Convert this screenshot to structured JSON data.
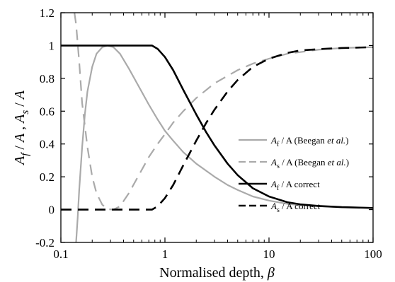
{
  "chart_data": {
    "type": "line",
    "title": "",
    "xlabel": "Normalised depth, β",
    "ylabel": "Af / A , As / A",
    "x_scale": "log",
    "xlim": [
      0.1,
      100
    ],
    "ylim": [
      -0.2,
      1.2
    ],
    "x_ticks": [
      {
        "value": 0.1,
        "label": "0.1"
      },
      {
        "value": 1,
        "label": "1"
      },
      {
        "value": 10,
        "label": "10"
      },
      {
        "value": 100,
        "label": "100"
      }
    ],
    "y_ticks": [
      {
        "value": -0.2,
        "label": "-0.2"
      },
      {
        "value": 0,
        "label": "0"
      },
      {
        "value": 0.2,
        "label": "0.2"
      },
      {
        "value": 0.4,
        "label": "0.4"
      },
      {
        "value": 0.6,
        "label": "0.6"
      },
      {
        "value": 0.8,
        "label": "0.8"
      },
      {
        "value": 1,
        "label": "1"
      },
      {
        "value": 1.2,
        "label": "1.2"
      }
    ],
    "grid": false,
    "legend_position": "right",
    "series": [
      {
        "name": "Af / A (Beegan et al.)",
        "legend": {
          "sym": "A",
          "sub": "f",
          "rest": " / A (Beegan ",
          "italic": "et al.",
          "end": ")"
        },
        "color": "#aaaaaa",
        "style": "solid",
        "points": [
          [
            0.14,
            -0.2
          ],
          [
            0.145,
            -0.05
          ],
          [
            0.15,
            0.12
          ],
          [
            0.16,
            0.38
          ],
          [
            0.17,
            0.58
          ],
          [
            0.18,
            0.72
          ],
          [
            0.2,
            0.87
          ],
          [
            0.22,
            0.95
          ],
          [
            0.25,
            0.99
          ],
          [
            0.28,
            1.0
          ],
          [
            0.32,
            0.99
          ],
          [
            0.37,
            0.95
          ],
          [
            0.45,
            0.86
          ],
          [
            0.55,
            0.76
          ],
          [
            0.7,
            0.64
          ],
          [
            0.85,
            0.55
          ],
          [
            1.0,
            0.48
          ],
          [
            1.2,
            0.42
          ],
          [
            1.5,
            0.35
          ],
          [
            2.0,
            0.28
          ],
          [
            3.0,
            0.2
          ],
          [
            4.0,
            0.15
          ],
          [
            5.0,
            0.12
          ],
          [
            7.0,
            0.08
          ],
          [
            10.0,
            0.055
          ],
          [
            15.0,
            0.035
          ],
          [
            20.0,
            0.027
          ],
          [
            30.0,
            0.02
          ],
          [
            50.0,
            0.015
          ],
          [
            100.0,
            0.01
          ]
        ]
      },
      {
        "name": "As / A (Beegan et al.)",
        "legend": {
          "sym": "A",
          "sub": "s",
          "rest": " / A (Beegan ",
          "italic": "et al.",
          "end": ")"
        },
        "color": "#aaaaaa",
        "style": "dashed",
        "points": [
          [
            0.135,
            1.2
          ],
          [
            0.14,
            1.13
          ],
          [
            0.15,
            0.9
          ],
          [
            0.16,
            0.65
          ],
          [
            0.18,
            0.38
          ],
          [
            0.2,
            0.2
          ],
          [
            0.22,
            0.1
          ],
          [
            0.25,
            0.03
          ],
          [
            0.28,
            0.003
          ],
          [
            0.32,
            0.0
          ],
          [
            0.37,
            0.02
          ],
          [
            0.45,
            0.1
          ],
          [
            0.55,
            0.2
          ],
          [
            0.7,
            0.32
          ],
          [
            0.85,
            0.4
          ],
          [
            1.0,
            0.46
          ],
          [
            1.2,
            0.53
          ],
          [
            1.5,
            0.6
          ],
          [
            2.0,
            0.68
          ],
          [
            3.0,
            0.77
          ],
          [
            5.0,
            0.85
          ],
          [
            7.0,
            0.89
          ],
          [
            10.0,
            0.92
          ],
          [
            15.0,
            0.95
          ],
          [
            20.0,
            0.96
          ],
          [
            30.0,
            0.975
          ],
          [
            50.0,
            0.985
          ],
          [
            100.0,
            0.99
          ]
        ]
      },
      {
        "name": "Af / A correct",
        "legend": {
          "sym": "A",
          "sub": "f",
          "rest": " / A correct",
          "italic": "",
          "end": ""
        },
        "color": "#000000",
        "style": "solid",
        "points": [
          [
            0.1,
            1.0
          ],
          [
            0.75,
            1.0
          ],
          [
            0.85,
            0.98
          ],
          [
            1.0,
            0.93
          ],
          [
            1.2,
            0.85
          ],
          [
            1.5,
            0.73
          ],
          [
            2.0,
            0.58
          ],
          [
            2.5,
            0.47
          ],
          [
            3.0,
            0.39
          ],
          [
            4.0,
            0.28
          ],
          [
            5.0,
            0.21
          ],
          [
            7.0,
            0.13
          ],
          [
            10.0,
            0.08
          ],
          [
            15.0,
            0.045
          ],
          [
            20.0,
            0.032
          ],
          [
            30.0,
            0.022
          ],
          [
            50.0,
            0.015
          ],
          [
            100.0,
            0.01
          ]
        ]
      },
      {
        "name": "As / A correct",
        "legend": {
          "sym": "A",
          "sub": "s",
          "rest": " / A correct",
          "italic": "",
          "end": ""
        },
        "color": "#000000",
        "style": "dashed",
        "points": [
          [
            0.1,
            0.0
          ],
          [
            0.75,
            0.0
          ],
          [
            0.85,
            0.02
          ],
          [
            1.0,
            0.07
          ],
          [
            1.2,
            0.15
          ],
          [
            1.5,
            0.27
          ],
          [
            2.0,
            0.42
          ],
          [
            2.5,
            0.53
          ],
          [
            3.0,
            0.61
          ],
          [
            4.0,
            0.72
          ],
          [
            5.0,
            0.79
          ],
          [
            7.0,
            0.87
          ],
          [
            10.0,
            0.92
          ],
          [
            15.0,
            0.955
          ],
          [
            20.0,
            0.97
          ],
          [
            30.0,
            0.978
          ],
          [
            50.0,
            0.985
          ],
          [
            100.0,
            0.99
          ]
        ]
      }
    ]
  }
}
